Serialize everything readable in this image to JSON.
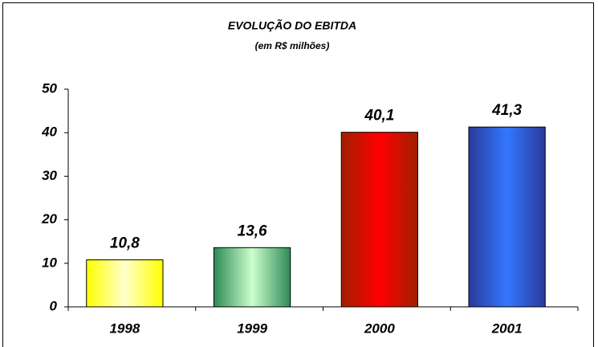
{
  "chart_data": {
    "type": "bar",
    "title": "EVOLUÇÃO DO EBITDA",
    "subtitle": "(em R$ milhões)",
    "categories": [
      "1998",
      "1999",
      "2000",
      "2001"
    ],
    "values": [
      10.8,
      13.6,
      40.1,
      41.3
    ],
    "value_labels": [
      "10,8",
      "13,6",
      "40,1",
      "41,3"
    ],
    "colors": [
      [
        "#ffff00",
        "#ffffcc"
      ],
      [
        "#2e8b57",
        "#ccffcc"
      ],
      [
        "#a02000",
        "#ff0000"
      ],
      [
        "#2a3a9a",
        "#3377ff"
      ]
    ],
    "ylim": [
      0,
      50
    ],
    "yticks": [
      0,
      10,
      20,
      30,
      40,
      50
    ],
    "grid": false
  }
}
